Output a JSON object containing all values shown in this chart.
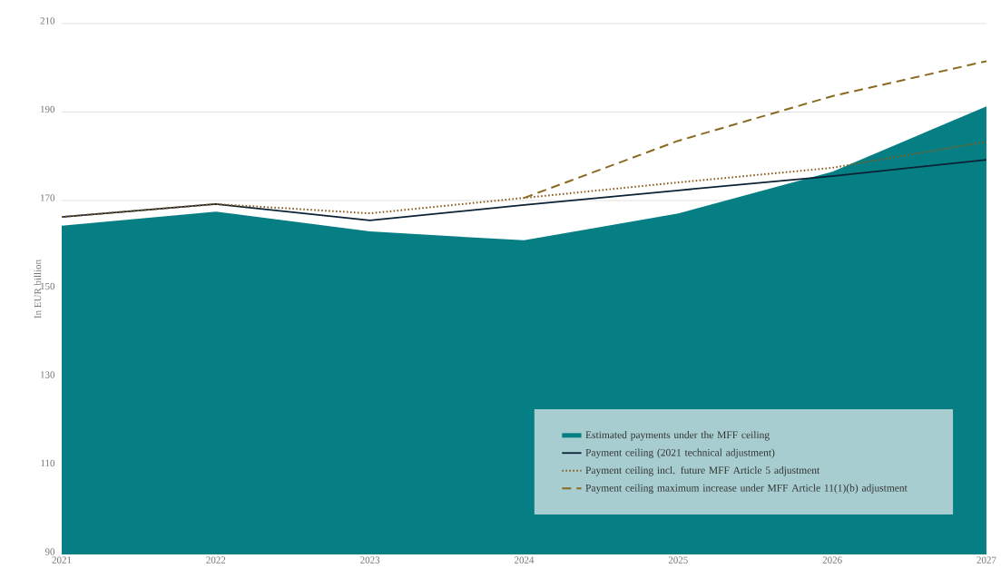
{
  "chart_data": {
    "type": "line",
    "ylabel": "In EUR billion",
    "x": [
      2021,
      2022,
      2023,
      2024,
      2025,
      2026,
      2027
    ],
    "series": [
      {
        "name": "Estimated payments under the MFF ceiling",
        "type": "area",
        "color": "#067f84",
        "values": [
          164.3,
          167.5,
          163.0,
          161.0,
          167.1,
          176.5,
          191.3
        ]
      },
      {
        "name": "Payment ceiling (2021 technical adjustment)",
        "color": "#0b2236",
        "line_style": "solid",
        "values": [
          166.3,
          169.2,
          165.5,
          169.0,
          172.3,
          175.5,
          179.2
        ]
      },
      {
        "name": "Payment ceiling incl. future MFF Article 5 adjustment",
        "color": "#8b5a1a",
        "line_style": "dotted",
        "values": [
          166.3,
          169.2,
          167.1,
          170.6,
          174.1,
          177.4,
          183.3
        ]
      },
      {
        "name": "Payment ceiling maximum increase under MFF Article 11(1)(b) adjustment",
        "color": "#8a6a20",
        "line_style": "dashed",
        "values": [
          null,
          null,
          null,
          170.6,
          183.5,
          193.6,
          201.5
        ]
      }
    ],
    "xlim": [
      2021,
      2027
    ],
    "xticks": [
      2021,
      2022,
      2023,
      2024,
      2025,
      2026,
      2027
    ],
    "ylim": [
      90,
      210
    ],
    "yticks": [
      90,
      110,
      130,
      150,
      170,
      190,
      210
    ],
    "grid": "y",
    "legend": "bottom right"
  }
}
